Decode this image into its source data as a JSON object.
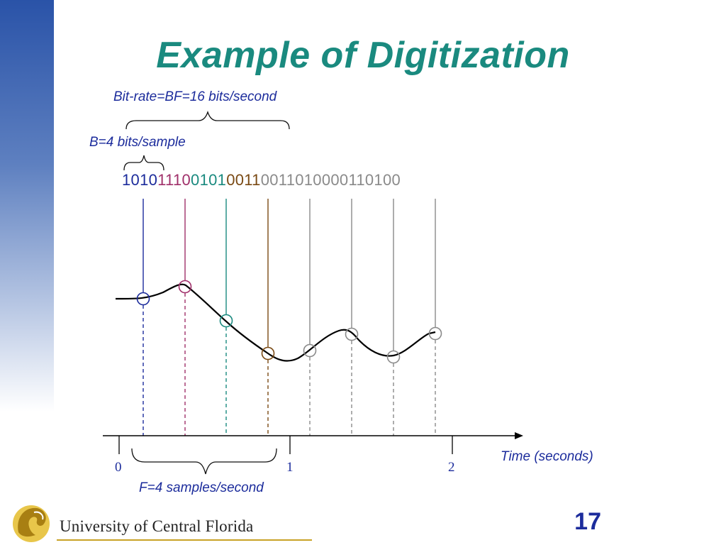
{
  "slide": {
    "title": "Example of Digitization",
    "bitrate_label": "Bit-rate=BF=16 bits/second",
    "bits_per_sample_label": "B=4 bits/sample",
    "samples_per_second_label": "F=4 samples/second",
    "time_axis_label": "Time (seconds)",
    "page_number": "17",
    "logo_text": "University of Central Florida"
  },
  "bitstream": [
    {
      "bits": "1010",
      "color": "#1c2c9c"
    },
    {
      "bits": "1110",
      "color": "#a0306a"
    },
    {
      "bits": "0101",
      "color": "#1a8a7f"
    },
    {
      "bits": "0011",
      "color": "#7a4a14"
    },
    {
      "bits": "0011010000110100",
      "color": "#8a8a8a"
    }
  ],
  "time_ticks": [
    "0",
    "1",
    "2"
  ],
  "sample_colors": [
    "#1c2c9c",
    "#a0306a",
    "#1a8a7f",
    "#7a4a14",
    "#8a8a8a",
    "#8a8a8a",
    "#8a8a8a",
    "#8a8a8a"
  ],
  "colors": {
    "title": "#1a8a7f",
    "label": "#1c2c9c",
    "left_band_top": "#2a53a8",
    "logo_gold": "#c9a227"
  }
}
